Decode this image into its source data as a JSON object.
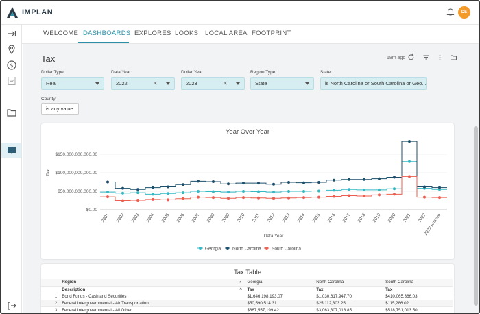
{
  "app": {
    "name": "IMPLAN"
  },
  "user": {
    "initials": "DE"
  },
  "colors": {
    "accent": "#2a8fa7",
    "georgia": "#33b8c4",
    "north_carolina": "#1b4f6b",
    "south_carolina": "#ec5e4f"
  },
  "nav": {
    "tabs": [
      {
        "label": "WELCOME"
      },
      {
        "label": "DASHBOARDS"
      },
      {
        "label": "EXPLORES"
      },
      {
        "label": "LOOKS"
      },
      {
        "label": "LOCAL AREA"
      },
      {
        "label": "FOOTPRINT"
      }
    ],
    "active_tab": "DASHBOARDS"
  },
  "page": {
    "title": "Tax",
    "last_run": "18m ago"
  },
  "filters": {
    "dollar_type": {
      "label": "Dollar Type",
      "value": "Real"
    },
    "data_year": {
      "label": "Data Year:",
      "value": "2022"
    },
    "dollar_year": {
      "label": "Dollar Year",
      "value": "2023"
    },
    "region_type": {
      "label": "Region Type:",
      "value": "State"
    },
    "state": {
      "label": "State:",
      "value": "is North Carolina or South Carolina or Geo..."
    },
    "county": {
      "label": "County:",
      "value": "is any value"
    }
  },
  "chart_data": {
    "type": "line",
    "title": "Year Over Year",
    "xlabel": "Data Year",
    "ylabel": "Tax",
    "ylim": [
      0,
      200000000000
    ],
    "y_ticks": [
      "$0.00",
      "$50,000,000,000.00",
      "$100,000,000,000.00",
      "$150,000,000,000.00"
    ],
    "categories": [
      "2001",
      "2002",
      "2003",
      "2004",
      "2005",
      "2006",
      "2007",
      "2008",
      "2009",
      "2010",
      "2011",
      "2012",
      "2013",
      "2014",
      "2015",
      "2016",
      "2017",
      "2018",
      "2019",
      "2020",
      "2021",
      "2022",
      "2022 Archive"
    ],
    "legend_position": "bottom",
    "series": [
      {
        "name": "Georgia",
        "values": [
          48000000000,
          45000000000,
          46000000000,
          42000000000,
          44000000000,
          46000000000,
          50000000000,
          49000000000,
          48000000000,
          50000000000,
          49000000000,
          48000000000,
          50000000000,
          50000000000,
          51000000000,
          53000000000,
          55000000000,
          54000000000,
          54000000000,
          57000000000,
          130000000000,
          58000000000,
          55000000000
        ]
      },
      {
        "name": "North Carolina",
        "values": [
          75000000000,
          58000000000,
          55000000000,
          60000000000,
          62000000000,
          68000000000,
          77000000000,
          76000000000,
          70000000000,
          72000000000,
          72000000000,
          69000000000,
          74000000000,
          73000000000,
          74000000000,
          80000000000,
          82000000000,
          82000000000,
          84000000000,
          88000000000,
          185000000000,
          62000000000,
          60000000000
        ]
      },
      {
        "name": "South Carolina",
        "values": [
          35000000000,
          25000000000,
          26000000000,
          28000000000,
          27000000000,
          30000000000,
          34000000000,
          33000000000,
          31000000000,
          33000000000,
          32000000000,
          31000000000,
          32000000000,
          33000000000,
          34000000000,
          36000000000,
          38000000000,
          37000000000,
          40000000000,
          42000000000,
          90000000000,
          34000000000,
          33000000000
        ]
      }
    ]
  },
  "tax_table": {
    "title": "Tax Table",
    "pivot_header": {
      "label": "Region",
      "regions": [
        "Georgia",
        "North Carolina",
        "South Carolina"
      ]
    },
    "columns": {
      "description": "Description",
      "value": "Tax"
    },
    "rows": [
      {
        "n": "1",
        "description": "Bond Funds - Cash and Securities",
        "values": [
          "$1,646,198,193.07",
          "$1,030,617,947.70",
          "$410,065,366.03"
        ]
      },
      {
        "n": "2",
        "description": "Federal Intergovernmental - Air Transportation",
        "values": [
          "$50,590,514.31",
          "$25,112,303.25",
          "$115,286.02"
        ]
      },
      {
        "n": "3",
        "description": "Federal Intergovernmental - All Other",
        "values": [
          "$667,557,199.42",
          "$3,063,307,018.85",
          "$518,751,013.50"
        ]
      }
    ]
  }
}
